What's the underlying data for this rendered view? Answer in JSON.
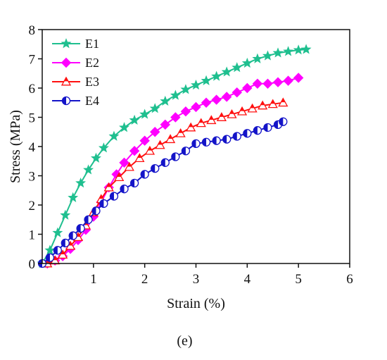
{
  "chart_data": {
    "type": "line",
    "xlabel": "Strain (%)",
    "ylabel": "Stress (MPa)",
    "panel_label": "(e)",
    "xlim": [
      0,
      6
    ],
    "ylim": [
      0,
      8
    ],
    "x_ticks": [
      "1",
      "2",
      "3",
      "4",
      "5",
      "6"
    ],
    "y_ticks": [
      "0",
      "1",
      "2",
      "3",
      "4",
      "5",
      "6",
      "7",
      "8"
    ],
    "grid": false,
    "legend_position": "top-left",
    "series": [
      {
        "name": "E1",
        "color": "#1fbf8f",
        "marker": "star",
        "x": [
          0.0,
          0.15,
          0.3,
          0.45,
          0.6,
          0.75,
          0.9,
          1.05,
          1.2,
          1.4,
          1.6,
          1.8,
          2.0,
          2.2,
          2.4,
          2.6,
          2.8,
          3.0,
          3.2,
          3.4,
          3.6,
          3.8,
          4.0,
          4.2,
          4.4,
          4.6,
          4.8,
          5.0,
          5.15
        ],
        "y": [
          0.0,
          0.45,
          1.05,
          1.65,
          2.25,
          2.75,
          3.2,
          3.6,
          3.95,
          4.35,
          4.65,
          4.9,
          5.1,
          5.3,
          5.55,
          5.75,
          5.95,
          6.1,
          6.25,
          6.4,
          6.55,
          6.7,
          6.85,
          7.0,
          7.1,
          7.2,
          7.25,
          7.3,
          7.32
        ]
      },
      {
        "name": "E2",
        "color": "#ff00ff",
        "marker": "diamond",
        "x": [
          0.1,
          0.25,
          0.4,
          0.55,
          0.7,
          0.85,
          1.0,
          1.15,
          1.3,
          1.45,
          1.6,
          1.8,
          2.0,
          2.2,
          2.4,
          2.6,
          2.8,
          3.0,
          3.2,
          3.4,
          3.6,
          3.8,
          4.0,
          4.2,
          4.4,
          4.6,
          4.8,
          5.0
        ],
        "y": [
          0.0,
          0.1,
          0.25,
          0.5,
          0.8,
          1.15,
          1.6,
          2.1,
          2.6,
          3.05,
          3.45,
          3.85,
          4.2,
          4.5,
          4.75,
          5.0,
          5.2,
          5.35,
          5.5,
          5.6,
          5.7,
          5.85,
          6.0,
          6.15,
          6.15,
          6.2,
          6.25,
          6.35
        ]
      },
      {
        "name": "E3",
        "color": "#ff1010",
        "marker": "triangle",
        "x": [
          0.1,
          0.25,
          0.4,
          0.55,
          0.7,
          0.85,
          1.0,
          1.15,
          1.3,
          1.5,
          1.7,
          1.9,
          2.1,
          2.3,
          2.5,
          2.7,
          2.9,
          3.1,
          3.3,
          3.5,
          3.7,
          3.9,
          4.1,
          4.3,
          4.5,
          4.7
        ],
        "y": [
          0.0,
          0.1,
          0.3,
          0.6,
          0.9,
          1.3,
          1.75,
          2.2,
          2.6,
          2.95,
          3.3,
          3.6,
          3.85,
          4.05,
          4.25,
          4.45,
          4.65,
          4.8,
          4.9,
          5.0,
          5.1,
          5.2,
          5.3,
          5.4,
          5.45,
          5.5
        ]
      },
      {
        "name": "E4",
        "color": "#1414c8",
        "marker": "half-circle",
        "x": [
          0.0,
          0.15,
          0.3,
          0.45,
          0.6,
          0.75,
          0.9,
          1.05,
          1.2,
          1.4,
          1.6,
          1.8,
          2.0,
          2.2,
          2.4,
          2.6,
          2.8,
          3.0,
          3.2,
          3.4,
          3.6,
          3.8,
          4.0,
          4.2,
          4.4,
          4.6,
          4.7
        ],
        "y": [
          0.0,
          0.2,
          0.45,
          0.7,
          0.95,
          1.2,
          1.5,
          1.8,
          2.05,
          2.3,
          2.55,
          2.75,
          3.05,
          3.25,
          3.45,
          3.65,
          3.85,
          4.1,
          4.15,
          4.2,
          4.25,
          4.35,
          4.45,
          4.55,
          4.65,
          4.75,
          4.85
        ]
      }
    ]
  }
}
